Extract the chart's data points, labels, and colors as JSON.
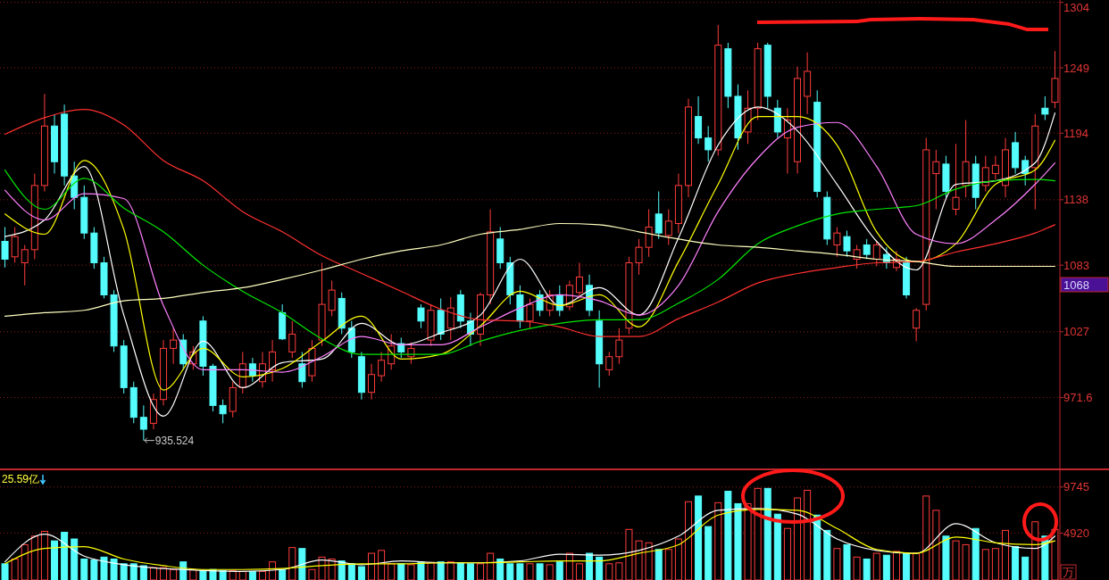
{
  "chart_data": [
    {
      "type": "candlestick",
      "categories": [
        null,
        null,
        null,
        null,
        null,
        null,
        null,
        null,
        null,
        null,
        null,
        null,
        null,
        null,
        null,
        null,
        null,
        null,
        null,
        null,
        null,
        null,
        null,
        null,
        null,
        null,
        null,
        null,
        null,
        null,
        null,
        null,
        null,
        null,
        null,
        null,
        null,
        null,
        null,
        null,
        null,
        null,
        null,
        null,
        null,
        null,
        null,
        null,
        null,
        null,
        null,
        null,
        null,
        null,
        null,
        null,
        null,
        null,
        null,
        null,
        null,
        null,
        null,
        null,
        null,
        null,
        null,
        null,
        null,
        null,
        null,
        null,
        null,
        null,
        null,
        null,
        null,
        null,
        null,
        null,
        null,
        null,
        null,
        null,
        null,
        null,
        null,
        null,
        null,
        null,
        null,
        null,
        null,
        null,
        null,
        null,
        null,
        null,
        null,
        null,
        null,
        null,
        null,
        null,
        null,
        null,
        null
      ],
      "ohlc": [
        [
          1103,
          1115,
          1081,
          1088
        ],
        [
          1090,
          1115,
          1085,
          1107
        ],
        [
          1085,
          1100,
          1066,
          1096
        ],
        [
          1096,
          1160,
          1088,
          1150
        ],
        [
          1150,
          1227,
          1145,
          1200
        ],
        [
          1200,
          1210,
          1160,
          1170
        ],
        [
          1210,
          1218,
          1150,
          1158
        ],
        [
          1158,
          1170,
          1130,
          1140
        ],
        [
          1140,
          1150,
          1105,
          1110
        ],
        [
          1110,
          1115,
          1080,
          1085
        ],
        [
          1085,
          1090,
          1055,
          1058
        ],
        [
          1058,
          1062,
          1010,
          1015
        ],
        [
          1015,
          1020,
          975,
          980
        ],
        [
          980,
          985,
          950,
          955
        ],
        [
          955,
          965,
          935.524,
          945
        ],
        [
          950,
          975,
          945,
          970
        ],
        [
          970,
          1020,
          965,
          1013
        ],
        [
          1013,
          1030,
          1000,
          1020
        ],
        [
          1020,
          1025,
          995,
          1000
        ],
        [
          1000,
          1015,
          995,
          1010
        ],
        [
          1036,
          1040,
          990,
          998
        ],
        [
          998,
          1000,
          960,
          965
        ],
        [
          965,
          970,
          950,
          958
        ],
        [
          960,
          985,
          955,
          980
        ],
        [
          980,
          1010,
          975,
          1000
        ],
        [
          1000,
          1005,
          985,
          990
        ],
        [
          985,
          1010,
          980,
          1000
        ],
        [
          995,
          1020,
          985,
          1010
        ],
        [
          1043,
          1050,
          1020,
          1021
        ],
        [
          1010,
          1036,
          1005,
          1025
        ],
        [
          1000,
          1010,
          980,
          985
        ],
        [
          990,
          1020,
          985,
          1013
        ],
        [
          1020,
          1085,
          1015,
          1050
        ],
        [
          1045,
          1070,
          1040,
          1062
        ],
        [
          1055,
          1060,
          1025,
          1030
        ],
        [
          1030,
          1036,
          1005,
          1010
        ],
        [
          1006,
          1010,
          970,
          976
        ],
        [
          976,
          1000,
          970,
          991
        ],
        [
          990,
          1010,
          985,
          1003
        ],
        [
          1000,
          1025,
          995,
          1015
        ],
        [
          1017,
          1022,
          1005,
          1010
        ],
        [
          1006,
          1018,
          1000,
          1013
        ],
        [
          1047,
          1050,
          1030,
          1036
        ],
        [
          1020,
          1050,
          1015,
          1045
        ],
        [
          1045,
          1055,
          1020,
          1025
        ],
        [
          1030,
          1056,
          1020,
          1047
        ],
        [
          1058,
          1062,
          1030,
          1036
        ],
        [
          1036,
          1043,
          1015,
          1025
        ],
        [
          1025,
          1060,
          1015,
          1058
        ],
        [
          1058,
          1130,
          1050,
          1111
        ],
        [
          1105,
          1115,
          1080,
          1085
        ],
        [
          1085,
          1090,
          1050,
          1058
        ],
        [
          1058,
          1066,
          1030,
          1036
        ],
        [
          1036,
          1055,
          1030,
          1050
        ],
        [
          1058,
          1062,
          1040,
          1045
        ],
        [
          1045,
          1062,
          1040,
          1058
        ],
        [
          1058,
          1066,
          1040,
          1045
        ],
        [
          1048,
          1070,
          1045,
          1066
        ],
        [
          1060,
          1085,
          1055,
          1073
        ],
        [
          1066,
          1075,
          1040,
          1045
        ],
        [
          1036,
          1045,
          980,
          1000
        ],
        [
          995,
          1010,
          990,
          1006
        ],
        [
          1006,
          1030,
          1000,
          1020
        ],
        [
          1030,
          1090,
          1025,
          1085
        ],
        [
          1085,
          1105,
          1075,
          1098
        ],
        [
          1098,
          1130,
          1090,
          1115
        ],
        [
          1126,
          1145,
          1105,
          1110
        ],
        [
          1108,
          1130,
          1100,
          1120
        ],
        [
          1118,
          1160,
          1110,
          1150
        ],
        [
          1150,
          1223,
          1140,
          1216
        ],
        [
          1208,
          1225,
          1185,
          1190
        ],
        [
          1190,
          1200,
          1170,
          1180
        ],
        [
          1180,
          1285,
          1175,
          1268
        ],
        [
          1265,
          1270,
          1215,
          1225
        ],
        [
          1225,
          1235,
          1180,
          1190
        ],
        [
          1195,
          1230,
          1185,
          1215
        ],
        [
          1215,
          1270,
          1205,
          1265
        ],
        [
          1268,
          1270,
          1215,
          1225
        ],
        [
          1215,
          1222,
          1190,
          1195
        ],
        [
          1190,
          1215,
          1160,
          1205
        ],
        [
          1170,
          1250,
          1160,
          1240
        ],
        [
          1225,
          1262,
          1210,
          1246
        ],
        [
          1220,
          1230,
          1140,
          1145
        ],
        [
          1140,
          1145,
          1100,
          1105
        ],
        [
          1100,
          1115,
          1090,
          1110
        ],
        [
          1107,
          1112,
          1090,
          1095
        ],
        [
          1088,
          1100,
          1080,
          1096
        ],
        [
          1100,
          1105,
          1088,
          1092
        ],
        [
          1088,
          1103,
          1082,
          1100
        ],
        [
          1092,
          1098,
          1080,
          1085
        ],
        [
          1081,
          1095,
          1078,
          1088
        ],
        [
          1085,
          1090,
          1055,
          1058
        ],
        [
          1030,
          1047,
          1019,
          1045
        ],
        [
          1050,
          1190,
          1045,
          1180
        ],
        [
          1160,
          1180,
          1130,
          1170
        ],
        [
          1168,
          1175,
          1140,
          1145
        ],
        [
          1130,
          1185,
          1125,
          1140
        ],
        [
          1150,
          1205,
          1140,
          1170
        ],
        [
          1168,
          1175,
          1130,
          1140
        ],
        [
          1150,
          1175,
          1145,
          1165
        ],
        [
          1160,
          1175,
          1155,
          1167
        ],
        [
          1150,
          1190,
          1140,
          1180
        ],
        [
          1186,
          1195,
          1160,
          1165
        ],
        [
          1171,
          1175,
          1150,
          1160
        ],
        [
          1165,
          1210,
          1130,
          1200
        ],
        [
          1215,
          1225,
          1205,
          1210
        ],
        [
          1220,
          1263,
          1215,
          1240
        ]
      ],
      "colors": [
        "#54fcfc",
        "#ff3c3c",
        "#ff3c3c",
        "#ff3c3c",
        "#ff3c3c",
        "#54fcfc",
        "#54fcfc",
        "#54fcfc",
        "#54fcfc",
        "#54fcfc",
        "#54fcfc",
        "#54fcfc",
        "#54fcfc",
        "#54fcfc",
        "#54fcfc",
        "#ff3c3c",
        "#ff3c3c",
        "#ff3c3c",
        "#54fcfc",
        "#ff3c3c",
        "#54fcfc",
        "#54fcfc",
        "#54fcfc",
        "#ff3c3c",
        "#ff3c3c",
        "#54fcfc",
        "#ff3c3c",
        "#ff3c3c",
        "#54fcfc",
        "#ff3c3c",
        "#54fcfc",
        "#ff3c3c",
        "#ff3c3c",
        "#ff3c3c",
        "#54fcfc",
        "#54fcfc",
        "#54fcfc",
        "#ff3c3c",
        "#ff3c3c",
        "#ff3c3c",
        "#54fcfc",
        "#ff3c3c",
        "#54fcfc",
        "#ff3c3c",
        "#54fcfc",
        "#ff3c3c",
        "#54fcfc",
        "#54fcfc",
        "#ff3c3c",
        "#ff3c3c",
        "#54fcfc",
        "#54fcfc",
        "#54fcfc",
        "#ff3c3c",
        "#54fcfc",
        "#ff3c3c",
        "#54fcfc",
        "#ff3c3c",
        "#ff3c3c",
        "#54fcfc",
        "#54fcfc",
        "#ff3c3c",
        "#ff3c3c",
        "#ff3c3c",
        "#ff3c3c",
        "#ff3c3c",
        "#54fcfc",
        "#ff3c3c",
        "#ff3c3c",
        "#ff3c3c",
        "#54fcfc",
        "#54fcfc",
        "#ff3c3c",
        "#54fcfc",
        "#54fcfc",
        "#ff3c3c",
        "#ff3c3c",
        "#54fcfc",
        "#54fcfc",
        "#ff3c3c",
        "#ff3c3c",
        "#ff3c3c",
        "#54fcfc",
        "#54fcfc",
        "#ff3c3c",
        "#54fcfc",
        "#ff3c3c",
        "#54fcfc",
        "#ff3c3c",
        "#54fcfc",
        "#ff3c3c",
        "#54fcfc",
        "#ff3c3c",
        "#ff3c3c",
        "#ff3c3c",
        "#54fcfc",
        "#ff3c3c",
        "#ff3c3c",
        "#54fcfc",
        "#ff3c3c",
        "#ff3c3c",
        "#ff3c3c",
        "#54fcfc",
        "#54fcfc",
        "#ff3c3c",
        "#54fcfc",
        "#ff3c3c"
      ],
      "series": [
        {
          "type": "line",
          "color": "#ffffff",
          "values": [
            1107,
            null,
            null,
            null,
            1121,
            null,
            null,
            null,
            1166,
            null,
            null,
            null,
            1041,
            null,
            null,
            null,
            956,
            null,
            null,
            null,
            1019,
            null,
            null,
            null,
            980,
            null,
            null,
            null,
            1001,
            null,
            null,
            null,
            1004,
            null,
            null,
            null,
            1034,
            null,
            null,
            null,
            1016,
            null,
            null,
            null,
            1026,
            null,
            null,
            null,
            1041,
            null,
            null,
            null,
            1088,
            null,
            null,
            null,
            1049,
            null,
            null,
            null,
            1064,
            null,
            null,
            null,
            1041,
            null,
            null,
            null,
            1106,
            null,
            null,
            null,
            1184,
            null,
            null,
            null,
            1216,
            null,
            null,
            null,
            1196,
            null,
            null,
            null,
            1151,
            null,
            null,
            null,
            1103,
            null,
            null,
            null,
            1079,
            null,
            null,
            null,
            1151,
            null,
            null,
            null,
            1154,
            null,
            null,
            null,
            1169,
            null,
            1211
          ]
        },
        {
          "type": "line",
          "color": "#ffff00",
          "values": [
            1126,
            null,
            null,
            null,
            1109,
            null,
            null,
            null,
            1171,
            null,
            null,
            null,
            1113,
            null,
            null,
            null,
            978,
            null,
            null,
            null,
            1013,
            null,
            null,
            null,
            989,
            null,
            null,
            null,
            996,
            null,
            null,
            null,
            1019,
            null,
            null,
            null,
            1040,
            null,
            null,
            null,
            1004,
            null,
            null,
            null,
            1008,
            null,
            null,
            null,
            1032,
            null,
            null,
            null,
            1061,
            null,
            null,
            null,
            1049,
            null,
            null,
            null,
            1058,
            null,
            null,
            null,
            1031,
            null,
            null,
            null,
            1086,
            null,
            null,
            null,
            1151,
            null,
            null,
            null,
            1208,
            null,
            null,
            null,
            1208,
            null,
            null,
            null,
            1184,
            null,
            null,
            null,
            1111,
            null,
            null,
            null,
            1086,
            null,
            null,
            null,
            1101,
            null,
            null,
            null,
            1151,
            null,
            null,
            null,
            1163,
            null,
            1188
          ]
        },
        {
          "type": "line",
          "color": "#ff80ff",
          "values": [
            1146,
            null,
            null,
            null,
            1121,
            null,
            null,
            null,
            1143,
            null,
            null,
            null,
            1139,
            null,
            null,
            null,
            1049,
            null,
            null,
            null,
            995,
            null,
            null,
            null,
            995,
            null,
            null,
            null,
            993,
            null,
            null,
            null,
            1006,
            null,
            null,
            null,
            1023,
            null,
            null,
            null,
            1016,
            null,
            null,
            null,
            1016,
            null,
            null,
            null,
            1031,
            null,
            null,
            null,
            1047,
            null,
            null,
            null,
            1058,
            null,
            null,
            null,
            1053,
            null,
            null,
            null,
            1041,
            null,
            null,
            null,
            1066,
            null,
            null,
            null,
            1128,
            null,
            null,
            null,
            1173,
            null,
            null,
            null,
            1199,
            null,
            null,
            null,
            1203,
            null,
            null,
            null,
            1166,
            null,
            null,
            null,
            1109,
            null,
            null,
            null,
            1101,
            null,
            null,
            null,
            1121,
            null,
            null,
            null,
            1151,
            null,
            1169
          ]
        },
        {
          "type": "line",
          "color": "#00e600",
          "values": [
            1163,
            null,
            null,
            null,
            1130,
            null,
            null,
            null,
            1156,
            null,
            null,
            null,
            1131,
            null,
            null,
            null,
            1111,
            null,
            null,
            null,
            1083,
            null,
            null,
            null,
            1061,
            null,
            null,
            null,
            1043,
            null,
            null,
            null,
            1021,
            null,
            null,
            null,
            1008,
            null,
            null,
            null,
            1008,
            null,
            null,
            null,
            1008,
            null,
            null,
            null,
            1019,
            null,
            null,
            null,
            1028,
            null,
            null,
            null,
            1034,
            null,
            null,
            null,
            1037,
            null,
            null,
            null,
            1037,
            null,
            null,
            null,
            1051,
            null,
            null,
            null,
            1071,
            null,
            null,
            null,
            1101,
            null,
            null,
            null,
            1116,
            null,
            null,
            null,
            1126,
            null,
            null,
            null,
            1130,
            null,
            null,
            null,
            1133,
            null,
            null,
            null,
            1147,
            null,
            null,
            null,
            1154,
            null,
            null,
            null,
            1155,
            null,
            1154
          ]
        },
        {
          "type": "line",
          "color": "#ff3030",
          "values": [
            1193,
            null,
            null,
            null,
            1207,
            null,
            null,
            null,
            1214,
            null,
            null,
            null,
            1201,
            null,
            null,
            null,
            1171,
            null,
            null,
            null,
            1154,
            null,
            null,
            null,
            1128,
            null,
            null,
            null,
            1111,
            null,
            null,
            null,
            1091,
            null,
            null,
            null,
            1076,
            null,
            null,
            null,
            1061,
            null,
            null,
            null,
            1046,
            null,
            null,
            null,
            1037,
            null,
            null,
            null,
            1036,
            null,
            null,
            null,
            1031,
            null,
            null,
            null,
            1023,
            null,
            null,
            null,
            1023,
            null,
            null,
            null,
            1038,
            null,
            null,
            null,
            1052,
            null,
            null,
            null,
            1068,
            null,
            null,
            null,
            1076,
            null,
            null,
            null,
            1081,
            null,
            null,
            null,
            1085,
            null,
            null,
            null,
            1086,
            null,
            null,
            null,
            1094,
            null,
            null,
            null,
            1101,
            null,
            null,
            null,
            1110,
            null,
            1117
          ]
        },
        {
          "type": "line",
          "color": "#ffffc0",
          "values": [
            1040,
            null,
            null,
            null,
            1043,
            null,
            null,
            null,
            1045,
            null,
            null,
            null,
            1053,
            null,
            null,
            null,
            1055,
            null,
            null,
            null,
            1060,
            null,
            null,
            null,
            1064,
            null,
            null,
            null,
            1071,
            null,
            null,
            null,
            1079,
            null,
            null,
            null,
            1088,
            null,
            null,
            null,
            1095,
            null,
            null,
            null,
            1100,
            null,
            null,
            null,
            1109,
            null,
            null,
            null,
            1113,
            null,
            null,
            null,
            1118,
            null,
            null,
            null,
            1117,
            null,
            null,
            null,
            1111,
            null,
            null,
            null,
            1105,
            null,
            null,
            null,
            1100,
            null,
            null,
            null,
            1098,
            null,
            null,
            null,
            1095,
            null,
            null,
            null,
            1092,
            null,
            null,
            null,
            1088,
            null,
            null,
            null,
            1086,
            null,
            null,
            null,
            1082,
            null,
            null,
            null,
            1082,
            null,
            null,
            null,
            1082,
            null,
            1082
          ]
        }
      ],
      "ylim": [
        912,
        1306
      ],
      "yticks": [
        971.6,
        1027,
        1083,
        1138,
        1194,
        1249,
        1304
      ],
      "grid": "y",
      "tick_labels": "y",
      "annotations": [
        "935.524",
        "1068"
      ]
    },
    {
      "type": "bar",
      "categories": [
        null,
        null,
        null,
        null,
        null,
        null,
        null,
        null,
        null,
        null,
        null,
        null,
        null,
        null,
        null,
        null,
        null,
        null,
        null,
        null,
        null,
        null,
        null,
        null,
        null,
        null,
        null,
        null,
        null,
        null,
        null,
        null,
        null,
        null,
        null,
        null,
        null,
        null,
        null,
        null,
        null,
        null,
        null,
        null,
        null,
        null,
        null,
        null,
        null,
        null,
        null,
        null,
        null,
        null,
        null,
        null,
        null,
        null,
        null,
        null,
        null,
        null,
        null,
        null,
        null,
        null,
        null,
        null,
        null,
        null,
        null,
        null,
        null,
        null,
        null,
        null,
        null,
        null,
        null,
        null,
        null,
        null,
        null,
        null,
        null,
        null,
        null,
        null,
        null,
        null,
        null,
        null,
        null,
        null,
        null,
        null,
        null,
        null,
        null,
        null,
        null,
        null,
        null,
        null,
        null,
        null,
        null
      ],
      "series": [
        {
          "type": "bar",
          "values": [
            1700,
            2200,
            3700,
            4600,
            5100,
            4100,
            5000,
            4300,
            2200,
            2100,
            2400,
            2200,
            1700,
            1700,
            1500,
            1300,
            1300,
            1100,
            1900,
            1100,
            1000,
            1100,
            1000,
            1000,
            900,
            900,
            900,
            1900,
            1100,
            3400,
            3300,
            1100,
            2400,
            2200,
            2000,
            1700,
            1400,
            2800,
            3100,
            1700,
            1700,
            1600,
            1900,
            1800,
            1900,
            1900,
            1800,
            1700,
            1700,
            2800,
            2200,
            1700,
            1700,
            1700,
            1700,
            1600,
            1900,
            2800,
            1700,
            2800,
            2400,
            1700,
            1800,
            5300,
            4100,
            3900,
            3200,
            3200,
            4300,
            8200,
            8800,
            5600,
            8100,
            9300,
            8000,
            8000,
            9600,
            9600,
            6900,
            5400,
            8600,
            9400,
            6800,
            5200,
            3300,
            3700,
            2400,
            2200,
            2800,
            2600,
            3000,
            2800,
            2800,
            8800,
            7300,
            4600,
            4100,
            3700,
            5400,
            3200,
            3300,
            5200,
            3500,
            2400,
            6100,
            4600,
            5300
          ],
          "colors": [
            "#54fcfc",
            "#ff3c3c",
            "#ff3c3c",
            "#ff3c3c",
            "#ff3c3c",
            "#54fcfc",
            "#54fcfc",
            "#54fcfc",
            "#54fcfc",
            "#54fcfc",
            "#54fcfc",
            "#54fcfc",
            "#54fcfc",
            "#54fcfc",
            "#54fcfc",
            "#ff3c3c",
            "#ff3c3c",
            "#ff3c3c",
            "#54fcfc",
            "#ff3c3c",
            "#54fcfc",
            "#54fcfc",
            "#54fcfc",
            "#ff3c3c",
            "#ff3c3c",
            "#54fcfc",
            "#ff3c3c",
            "#ff3c3c",
            "#54fcfc",
            "#ff3c3c",
            "#54fcfc",
            "#ff3c3c",
            "#ff3c3c",
            "#ff3c3c",
            "#54fcfc",
            "#54fcfc",
            "#54fcfc",
            "#ff3c3c",
            "#ff3c3c",
            "#ff3c3c",
            "#54fcfc",
            "#ff3c3c",
            "#54fcfc",
            "#ff3c3c",
            "#54fcfc",
            "#ff3c3c",
            "#54fcfc",
            "#54fcfc",
            "#ff3c3c",
            "#ff3c3c",
            "#54fcfc",
            "#54fcfc",
            "#54fcfc",
            "#ff3c3c",
            "#54fcfc",
            "#ff3c3c",
            "#54fcfc",
            "#ff3c3c",
            "#ff3c3c",
            "#54fcfc",
            "#54fcfc",
            "#ff3c3c",
            "#ff3c3c",
            "#ff3c3c",
            "#ff3c3c",
            "#ff3c3c",
            "#54fcfc",
            "#ff3c3c",
            "#ff3c3c",
            "#ff3c3c",
            "#54fcfc",
            "#54fcfc",
            "#ff3c3c",
            "#54fcfc",
            "#54fcfc",
            "#ff3c3c",
            "#ff3c3c",
            "#54fcfc",
            "#54fcfc",
            "#ff3c3c",
            "#ff3c3c",
            "#ff3c3c",
            "#54fcfc",
            "#54fcfc",
            "#ff3c3c",
            "#54fcfc",
            "#ff3c3c",
            "#54fcfc",
            "#ff3c3c",
            "#54fcfc",
            "#ff3c3c",
            "#54fcfc",
            "#ff3c3c",
            "#ff3c3c",
            "#ff3c3c",
            "#54fcfc",
            "#ff3c3c",
            "#ff3c3c",
            "#54fcfc",
            "#ff3c3c",
            "#ff3c3c",
            "#ff3c3c",
            "#54fcfc",
            "#54fcfc",
            "#ff3c3c",
            "#54fcfc",
            "#ff3c3c"
          ]
        },
        {
          "type": "line",
          "color": "#ffffff",
          "values": [
            1900,
            null,
            null,
            null,
            4800,
            null,
            null,
            null,
            2500,
            null,
            null,
            null,
            1600,
            null,
            null,
            null,
            1200,
            null,
            null,
            null,
            1000,
            null,
            null,
            null,
            900,
            null,
            null,
            null,
            1100,
            null,
            null,
            null,
            2100,
            null,
            null,
            null,
            1600,
            null,
            null,
            null,
            2000,
            null,
            null,
            null,
            1800,
            null,
            null,
            null,
            1800,
            null,
            null,
            null,
            2000,
            null,
            null,
            null,
            2700,
            null,
            null,
            null,
            2600,
            null,
            null,
            null,
            3100,
            null,
            null,
            null,
            4600,
            null,
            null,
            null,
            7300,
            null,
            null,
            null,
            7500,
            null,
            null,
            null,
            6900,
            null,
            null,
            null,
            4300,
            null,
            null,
            null,
            3100,
            null,
            null,
            null,
            2800,
            null,
            null,
            null,
            5900,
            null,
            null,
            null,
            3900,
            null,
            null,
            null,
            3300,
            null,
            4600
          ]
        },
        {
          "type": "line",
          "color": "#ffff00",
          "values": [
            1700,
            null,
            null,
            null,
            3300,
            null,
            null,
            null,
            3500,
            null,
            null,
            null,
            2200,
            null,
            null,
            null,
            1500,
            null,
            null,
            null,
            1100,
            null,
            null,
            null,
            1100,
            null,
            null,
            null,
            1200,
            null,
            null,
            null,
            1500,
            null,
            null,
            null,
            1700,
            null,
            null,
            null,
            1700,
            null,
            null,
            null,
            1800,
            null,
            null,
            null,
            1800,
            null,
            null,
            null,
            1900,
            null,
            null,
            null,
            2000,
            null,
            null,
            null,
            2000,
            null,
            null,
            null,
            2800,
            null,
            null,
            null,
            3700,
            null,
            null,
            null,
            6800,
            null,
            null,
            null,
            7400,
            null,
            null,
            null,
            7300,
            null,
            null,
            null,
            5400,
            null,
            null,
            null,
            3200,
            null,
            null,
            null,
            2800,
            null,
            null,
            null,
            4500,
            null,
            null,
            null,
            3900,
            null,
            null,
            null,
            3700,
            null,
            4100
          ]
        }
      ],
      "ylim": [
        0,
        11500
      ],
      "yticks": [
        4920,
        9745
      ],
      "grid": "y",
      "tick_labels": "y",
      "ylabel": "万",
      "annotations": [
        "25.59亿"
      ]
    }
  ]
}
